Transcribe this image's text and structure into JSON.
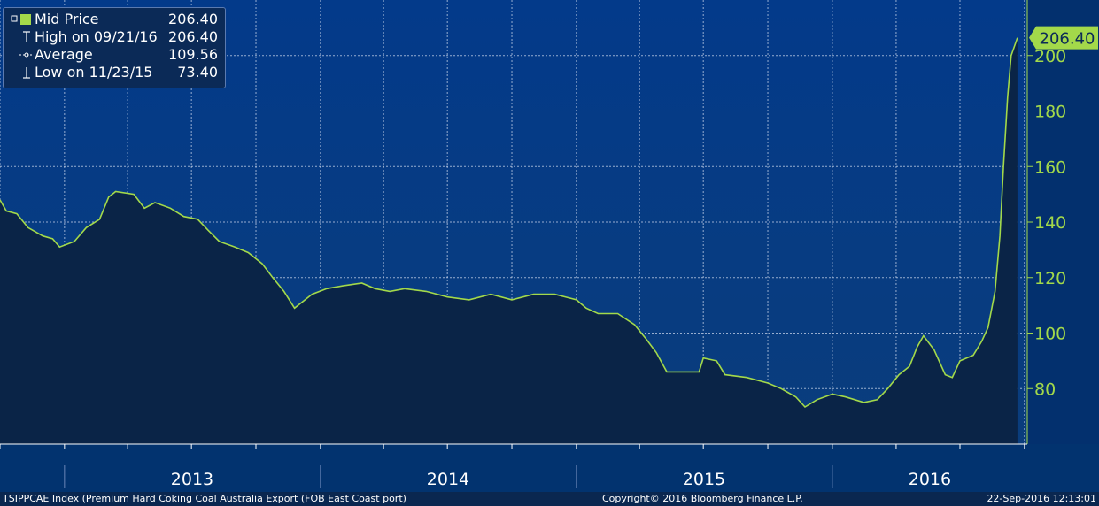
{
  "chart_data": {
    "type": "area",
    "series": [
      {
        "name": "Mid Price",
        "color": "#a3d94a",
        "points": [
          [
            "2012-10-01",
            148
          ],
          [
            "2012-10-10",
            144
          ],
          [
            "2012-10-25",
            143
          ],
          [
            "2012-11-10",
            138
          ],
          [
            "2012-12-01",
            135
          ],
          [
            "2012-12-15",
            134
          ],
          [
            "2012-12-25",
            131
          ],
          [
            "2013-01-15",
            133
          ],
          [
            "2013-02-01",
            138
          ],
          [
            "2013-02-20",
            141
          ],
          [
            "2013-03-05",
            149
          ],
          [
            "2013-03-15",
            151
          ],
          [
            "2013-04-10",
            150
          ],
          [
            "2013-04-25",
            145
          ],
          [
            "2013-05-10",
            147
          ],
          [
            "2013-06-01",
            145
          ],
          [
            "2013-06-20",
            142
          ],
          [
            "2013-07-10",
            141
          ],
          [
            "2013-07-25",
            137
          ],
          [
            "2013-08-10",
            133
          ],
          [
            "2013-09-01",
            131
          ],
          [
            "2013-09-20",
            129
          ],
          [
            "2013-10-10",
            125
          ],
          [
            "2013-10-25",
            120
          ],
          [
            "2013-11-10",
            115
          ],
          [
            "2013-11-25",
            109
          ],
          [
            "2013-12-05",
            111
          ],
          [
            "2013-12-20",
            114
          ],
          [
            "2014-01-10",
            116
          ],
          [
            "2014-02-01",
            117
          ],
          [
            "2014-03-01",
            118
          ],
          [
            "2014-03-20",
            116
          ],
          [
            "2014-04-10",
            115
          ],
          [
            "2014-05-01",
            116
          ],
          [
            "2014-06-01",
            115
          ],
          [
            "2014-07-01",
            113
          ],
          [
            "2014-08-01",
            112
          ],
          [
            "2014-09-01",
            114
          ],
          [
            "2014-10-01",
            112
          ],
          [
            "2014-11-01",
            114
          ],
          [
            "2014-12-01",
            114
          ],
          [
            "2015-01-01",
            112
          ],
          [
            "2015-01-15",
            109
          ],
          [
            "2015-02-01",
            107
          ],
          [
            "2015-03-01",
            107
          ],
          [
            "2015-03-25",
            103
          ],
          [
            "2015-04-10",
            98
          ],
          [
            "2015-04-25",
            93
          ],
          [
            "2015-05-10",
            86
          ],
          [
            "2015-06-05",
            86
          ],
          [
            "2015-06-25",
            86
          ],
          [
            "2015-07-01",
            91
          ],
          [
            "2015-07-20",
            90
          ],
          [
            "2015-08-01",
            85
          ],
          [
            "2015-09-01",
            84
          ],
          [
            "2015-10-01",
            82
          ],
          [
            "2015-10-20",
            80
          ],
          [
            "2015-11-10",
            77
          ],
          [
            "2015-11-23",
            73.4
          ],
          [
            "2015-12-10",
            76
          ],
          [
            "2016-01-01",
            78
          ],
          [
            "2016-01-20",
            77
          ],
          [
            "2016-02-15",
            75
          ],
          [
            "2016-03-05",
            76
          ],
          [
            "2016-03-20",
            80
          ],
          [
            "2016-04-05",
            85
          ],
          [
            "2016-04-20",
            88
          ],
          [
            "2016-05-01",
            95
          ],
          [
            "2016-05-10",
            99
          ],
          [
            "2016-05-25",
            94
          ],
          [
            "2016-06-10",
            85
          ],
          [
            "2016-06-20",
            84
          ],
          [
            "2016-07-01",
            90
          ],
          [
            "2016-07-20",
            92
          ],
          [
            "2016-08-01",
            97
          ],
          [
            "2016-08-10",
            102
          ],
          [
            "2016-08-20",
            115
          ],
          [
            "2016-08-27",
            135
          ],
          [
            "2016-09-01",
            160
          ],
          [
            "2016-09-07",
            185
          ],
          [
            "2016-09-12",
            200
          ],
          [
            "2016-09-21",
            206.4
          ]
        ]
      }
    ],
    "x_range": [
      "2012-10-01",
      "2016-10-05"
    ],
    "ylim": [
      60,
      220
    ],
    "yticks": [
      80,
      100,
      120,
      140,
      160,
      180,
      200
    ],
    "year_labels": [
      "2013",
      "2014",
      "2015",
      "2016"
    ],
    "grid": true,
    "legend_position": "top-left",
    "last_value_tag": "206.40"
  },
  "legend": {
    "items": [
      {
        "label": "Mid Price",
        "value": "206.40"
      },
      {
        "label": "High on 09/21/16",
        "value": "206.40"
      },
      {
        "label": "Average",
        "value": "109.56"
      },
      {
        "label": "Low on 11/23/15",
        "value": "73.40"
      }
    ]
  },
  "footer": {
    "index": "TSIPPCAE Index (Premium Hard Coking Coal Australia Export (FOB East Coast port)",
    "copyright": "Copyright© 2016 Bloomberg Finance L.P.",
    "timestamp": "22-Sep-2016 12:13:01"
  }
}
